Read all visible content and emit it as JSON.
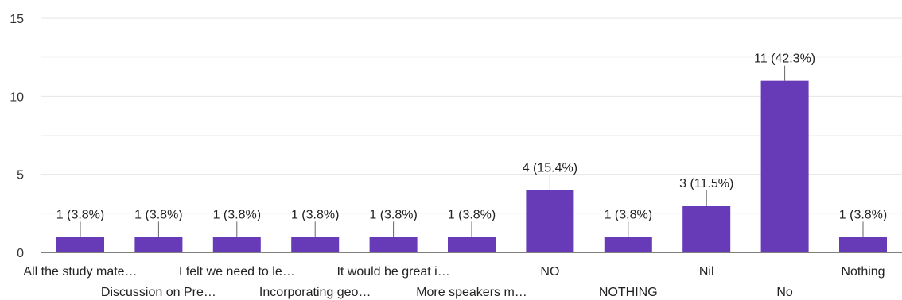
{
  "chart_data": {
    "type": "bar",
    "categories": [
      "All the study mate…",
      "Discussion on Pre…",
      "I felt we need to le…",
      "Incorporating geo…",
      "It would be great i…",
      "More speakers m…",
      "NO",
      "NOTHING",
      "Nil",
      "No",
      "Nothing"
    ],
    "values": [
      1,
      1,
      1,
      1,
      1,
      1,
      4,
      1,
      3,
      11,
      1
    ],
    "data_labels": [
      "1 (3.8%)",
      "1 (3.8%)",
      "1 (3.8%)",
      "1 (3.8%)",
      "1 (3.8%)",
      "1 (3.8%)",
      "4 (15.4%)",
      "1 (3.8%)",
      "3 (11.5%)",
      "11 (42.3%)",
      "1 (3.8%)"
    ],
    "y_ticks": [
      "0",
      "5",
      "10",
      "15"
    ],
    "ylim": [
      0,
      15
    ],
    "grid": true,
    "bar_color": "#673ab7",
    "title": "",
    "xlabel": "",
    "ylabel": ""
  }
}
